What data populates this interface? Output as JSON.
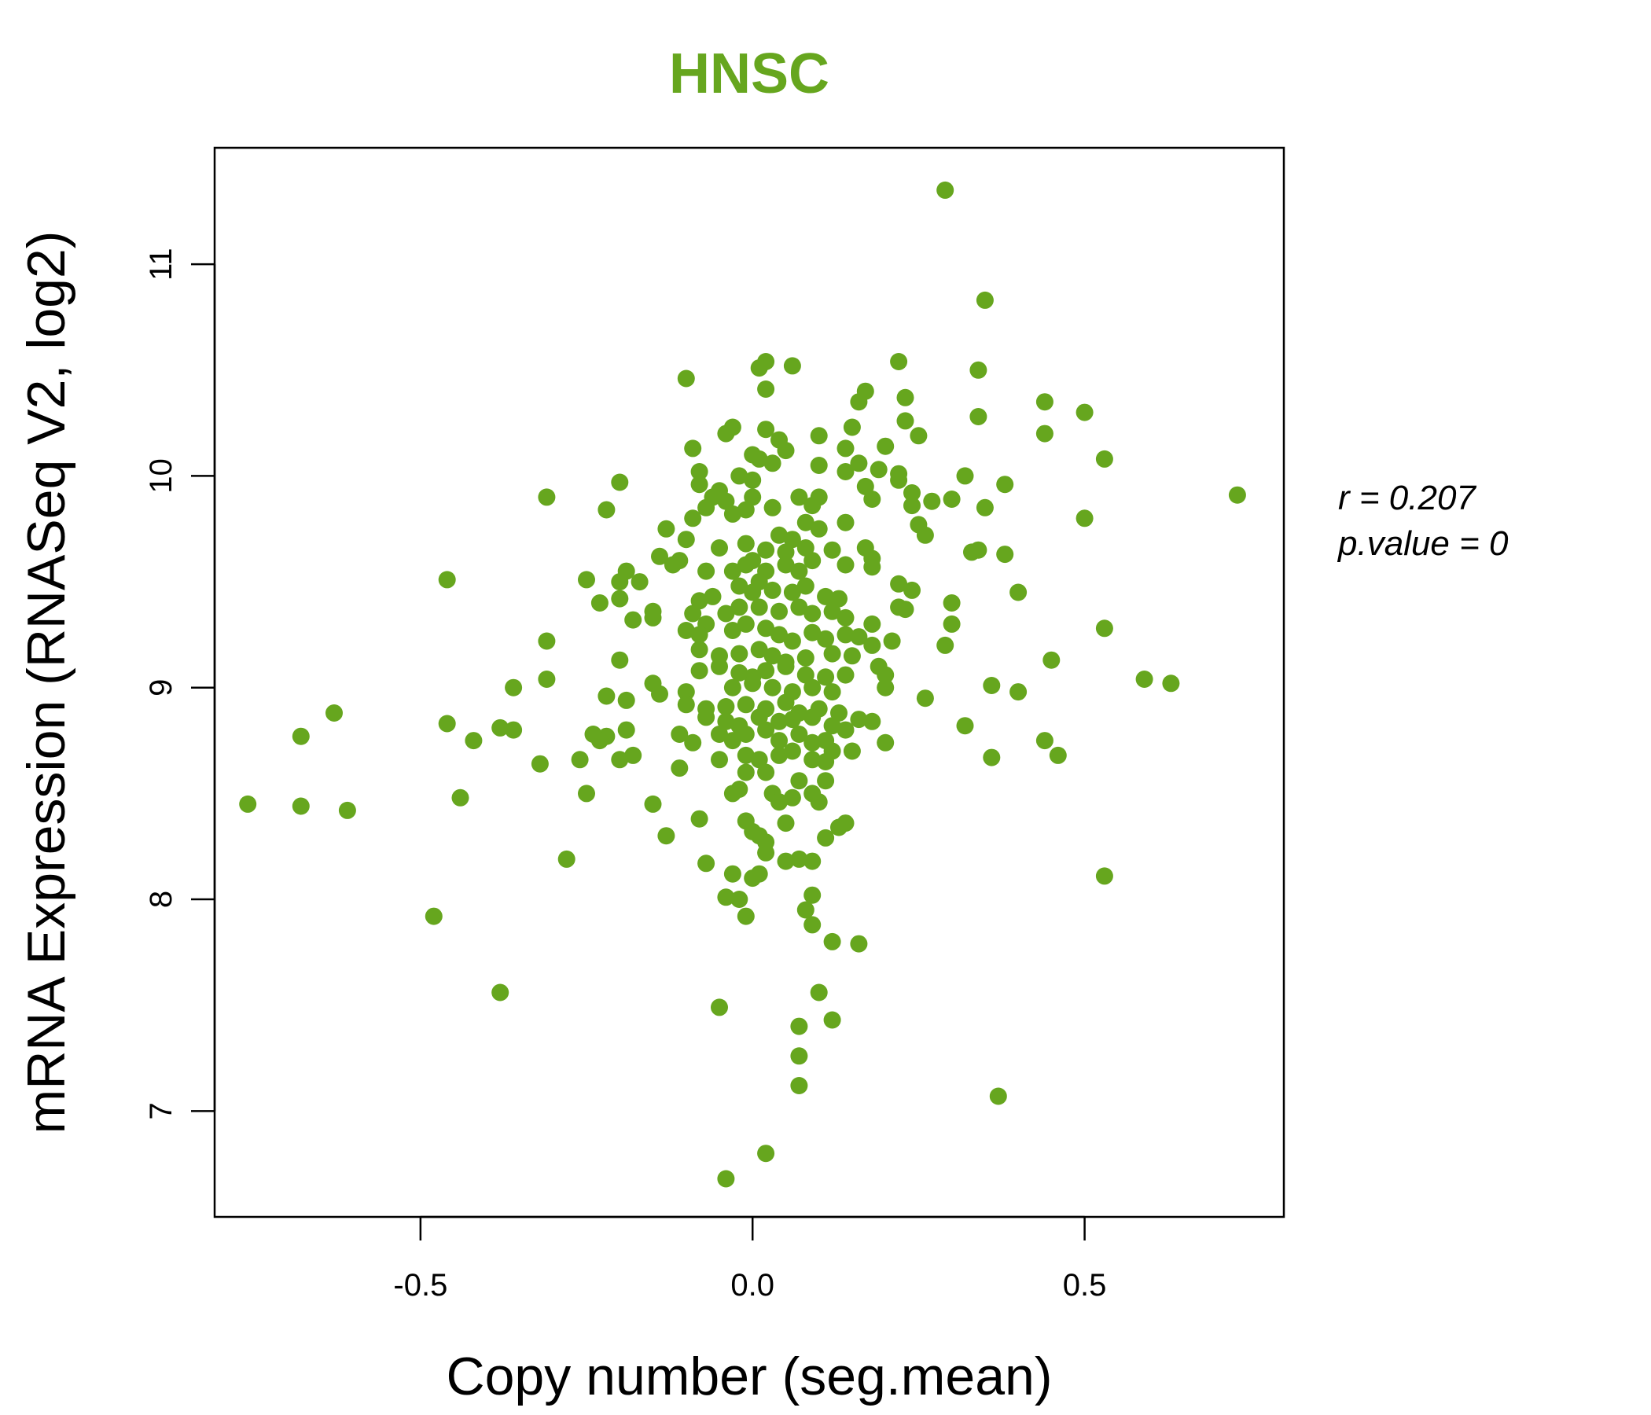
{
  "chart_data": {
    "type": "scatter",
    "title": "HNSC",
    "xlabel": "Copy number (seg.mean)",
    "ylabel": "mRNA Expression (RNASeq V2, log2)",
    "xlim": [
      -0.81,
      0.8
    ],
    "ylim": [
      6.5,
      11.55
    ],
    "x_ticks": [
      -0.5,
      0.0,
      0.5
    ],
    "x_tick_labels": [
      "-0.5",
      "0.0",
      "0.5"
    ],
    "y_ticks": [
      7,
      8,
      9,
      10,
      11
    ],
    "y_tick_labels": [
      "7",
      "8",
      "9",
      "10",
      "11"
    ],
    "grid": false,
    "point_color": "#66a61e",
    "title_color": "#66a61e",
    "stats": {
      "r_label": "r = 0.207",
      "p_label": "p.value = 0"
    },
    "points": [
      [
        0.29,
        11.35
      ],
      [
        0.35,
        10.83
      ],
      [
        0.22,
        10.54
      ],
      [
        0.34,
        10.5
      ],
      [
        0.02,
        10.54
      ],
      [
        0.01,
        10.51
      ],
      [
        0.06,
        10.52
      ],
      [
        0.02,
        10.41
      ],
      [
        -0.1,
        10.46
      ],
      [
        0.17,
        10.4
      ],
      [
        0.16,
        10.35
      ],
      [
        0.23,
        10.37
      ],
      [
        0.44,
        10.35
      ],
      [
        0.5,
        10.3
      ],
      [
        0.34,
        10.28
      ],
      [
        0.23,
        10.26
      ],
      [
        0.44,
        10.2
      ],
      [
        0.25,
        10.19
      ],
      [
        0.15,
        10.23
      ],
      [
        0.1,
        10.19
      ],
      [
        -0.03,
        10.23
      ],
      [
        -0.04,
        10.2
      ],
      [
        0.02,
        10.22
      ],
      [
        0.04,
        10.17
      ],
      [
        0.05,
        10.12
      ],
      [
        -0.09,
        10.13
      ],
      [
        0.14,
        10.13
      ],
      [
        0.2,
        10.14
      ],
      [
        0.01,
        10.08
      ],
      [
        0.0,
        10.1
      ],
      [
        0.03,
        10.06
      ],
      [
        0.1,
        10.05
      ],
      [
        0.16,
        10.06
      ],
      [
        0.53,
        10.08
      ],
      [
        0.14,
        10.02
      ],
      [
        0.19,
        10.03
      ],
      [
        0.22,
        10.01
      ],
      [
        0.32,
        10.0
      ],
      [
        0.38,
        9.96
      ],
      [
        0.22,
        9.98
      ],
      [
        -0.08,
        10.02
      ],
      [
        -0.02,
        10.0
      ],
      [
        0.0,
        9.98
      ],
      [
        -0.2,
        9.97
      ],
      [
        -0.31,
        9.9
      ],
      [
        -0.22,
        9.84
      ],
      [
        -0.08,
        9.96
      ],
      [
        -0.05,
        9.93
      ],
      [
        -0.06,
        9.9
      ],
      [
        -0.04,
        9.88
      ],
      [
        -0.07,
        9.85
      ],
      [
        -0.09,
        9.8
      ],
      [
        -0.03,
        9.82
      ],
      [
        -0.01,
        9.84
      ],
      [
        0.0,
        9.9
      ],
      [
        0.03,
        9.85
      ],
      [
        0.07,
        9.9
      ],
      [
        0.1,
        9.9
      ],
      [
        0.09,
        9.86
      ],
      [
        0.17,
        9.95
      ],
      [
        0.18,
        9.89
      ],
      [
        0.24,
        9.92
      ],
      [
        0.27,
        9.88
      ],
      [
        0.3,
        9.89
      ],
      [
        0.35,
        9.85
      ],
      [
        0.24,
        9.86
      ],
      [
        0.5,
        9.8
      ],
      [
        0.73,
        9.91
      ],
      [
        0.08,
        9.78
      ],
      [
        0.14,
        9.78
      ],
      [
        0.25,
        9.77
      ],
      [
        0.26,
        9.72
      ],
      [
        0.1,
        9.75
      ],
      [
        0.04,
        9.72
      ],
      [
        0.06,
        9.7
      ],
      [
        -0.13,
        9.75
      ],
      [
        -0.1,
        9.7
      ],
      [
        -0.05,
        9.66
      ],
      [
        -0.01,
        9.68
      ],
      [
        0.02,
        9.65
      ],
      [
        0.05,
        9.64
      ],
      [
        0.08,
        9.66
      ],
      [
        0.12,
        9.65
      ],
      [
        0.17,
        9.66
      ],
      [
        0.18,
        9.61
      ],
      [
        0.33,
        9.64
      ],
      [
        0.34,
        9.65
      ],
      [
        0.38,
        9.63
      ],
      [
        -0.14,
        9.62
      ],
      [
        -0.11,
        9.6
      ],
      [
        -0.12,
        9.58
      ],
      [
        -0.19,
        9.55
      ],
      [
        -0.17,
        9.5
      ],
      [
        -0.2,
        9.5
      ],
      [
        -0.25,
        9.51
      ],
      [
        -0.46,
        9.51
      ],
      [
        -0.07,
        9.55
      ],
      [
        -0.03,
        9.55
      ],
      [
        -0.01,
        9.58
      ],
      [
        0.0,
        9.6
      ],
      [
        0.02,
        9.55
      ],
      [
        0.05,
        9.58
      ],
      [
        0.07,
        9.55
      ],
      [
        0.09,
        9.6
      ],
      [
        0.14,
        9.58
      ],
      [
        0.18,
        9.57
      ],
      [
        0.22,
        9.49
      ],
      [
        0.24,
        9.46
      ],
      [
        0.4,
        9.45
      ],
      [
        -0.02,
        9.48
      ],
      [
        0.0,
        9.45
      ],
      [
        0.01,
        9.5
      ],
      [
        0.03,
        9.46
      ],
      [
        0.06,
        9.45
      ],
      [
        0.08,
        9.48
      ],
      [
        0.11,
        9.43
      ],
      [
        0.13,
        9.42
      ],
      [
        -0.08,
        9.41
      ],
      [
        -0.06,
        9.43
      ],
      [
        -0.2,
        9.42
      ],
      [
        -0.23,
        9.4
      ],
      [
        -0.15,
        9.36
      ],
      [
        -0.18,
        9.32
      ],
      [
        -0.15,
        9.33
      ],
      [
        -0.09,
        9.35
      ],
      [
        -0.07,
        9.3
      ],
      [
        -0.04,
        9.35
      ],
      [
        -0.02,
        9.38
      ],
      [
        0.01,
        9.38
      ],
      [
        0.04,
        9.36
      ],
      [
        0.07,
        9.38
      ],
      [
        0.09,
        9.35
      ],
      [
        0.12,
        9.36
      ],
      [
        0.14,
        9.33
      ],
      [
        0.18,
        9.3
      ],
      [
        0.22,
        9.38
      ],
      [
        0.23,
        9.37
      ],
      [
        0.3,
        9.4
      ],
      [
        0.3,
        9.3
      ],
      [
        -0.1,
        9.27
      ],
      [
        -0.08,
        9.25
      ],
      [
        -0.03,
        9.27
      ],
      [
        -0.01,
        9.3
      ],
      [
        0.02,
        9.28
      ],
      [
        0.04,
        9.25
      ],
      [
        0.06,
        9.22
      ],
      [
        0.09,
        9.26
      ],
      [
        0.11,
        9.23
      ],
      [
        0.14,
        9.25
      ],
      [
        0.16,
        9.24
      ],
      [
        0.18,
        9.2
      ],
      [
        0.21,
        9.22
      ],
      [
        0.29,
        9.2
      ],
      [
        0.53,
        9.28
      ],
      [
        -0.31,
        9.22
      ],
      [
        -0.08,
        9.18
      ],
      [
        -0.05,
        9.15
      ],
      [
        -0.02,
        9.16
      ],
      [
        0.01,
        9.18
      ],
      [
        0.03,
        9.15
      ],
      [
        0.05,
        9.12
      ],
      [
        0.08,
        9.14
      ],
      [
        0.12,
        9.16
      ],
      [
        0.15,
        9.15
      ],
      [
        0.19,
        9.1
      ],
      [
        0.45,
        9.13
      ],
      [
        -0.2,
        9.13
      ],
      [
        -0.08,
        9.08
      ],
      [
        -0.05,
        9.1
      ],
      [
        -0.02,
        9.07
      ],
      [
        0.0,
        9.05
      ],
      [
        0.02,
        9.08
      ],
      [
        0.05,
        9.1
      ],
      [
        0.08,
        9.06
      ],
      [
        0.11,
        9.05
      ],
      [
        0.14,
        9.06
      ],
      [
        0.2,
        9.06
      ],
      [
        0.59,
        9.04
      ],
      [
        0.63,
        9.02
      ],
      [
        -0.31,
        9.04
      ],
      [
        -0.36,
        9.0
      ],
      [
        -0.15,
        9.02
      ],
      [
        -0.1,
        8.98
      ],
      [
        -0.03,
        9.0
      ],
      [
        0.0,
        9.02
      ],
      [
        0.03,
        9.0
      ],
      [
        0.06,
        8.98
      ],
      [
        0.09,
        9.0
      ],
      [
        0.12,
        8.98
      ],
      [
        0.2,
        9.0
      ],
      [
        0.36,
        9.01
      ],
      [
        0.4,
        8.98
      ],
      [
        -0.14,
        8.97
      ],
      [
        -0.19,
        8.94
      ],
      [
        -0.22,
        8.96
      ],
      [
        -0.1,
        8.92
      ],
      [
        -0.07,
        8.9
      ],
      [
        -0.04,
        8.91
      ],
      [
        -0.01,
        8.92
      ],
      [
        0.02,
        8.9
      ],
      [
        0.05,
        8.93
      ],
      [
        0.07,
        8.88
      ],
      [
        0.1,
        8.9
      ],
      [
        0.13,
        8.88
      ],
      [
        0.16,
        8.85
      ],
      [
        0.26,
        8.95
      ],
      [
        -0.07,
        8.86
      ],
      [
        -0.04,
        8.84
      ],
      [
        -0.02,
        8.82
      ],
      [
        0.01,
        8.86
      ],
      [
        0.04,
        8.84
      ],
      [
        0.06,
        8.85
      ],
      [
        0.09,
        8.86
      ],
      [
        0.12,
        8.82
      ],
      [
        0.14,
        8.8
      ],
      [
        0.18,
        8.84
      ],
      [
        -0.63,
        8.88
      ],
      [
        -0.46,
        8.83
      ],
      [
        -0.38,
        8.81
      ],
      [
        -0.36,
        8.8
      ],
      [
        -0.19,
        8.8
      ],
      [
        -0.22,
        8.77
      ],
      [
        -0.23,
        8.75
      ],
      [
        -0.24,
        8.78
      ],
      [
        -0.11,
        8.78
      ],
      [
        -0.09,
        8.74
      ],
      [
        -0.05,
        8.78
      ],
      [
        -0.03,
        8.75
      ],
      [
        -0.01,
        8.78
      ],
      [
        0.02,
        8.8
      ],
      [
        0.04,
        8.75
      ],
      [
        0.07,
        8.78
      ],
      [
        0.09,
        8.74
      ],
      [
        0.11,
        8.75
      ],
      [
        0.2,
        8.74
      ],
      [
        0.32,
        8.82
      ],
      [
        0.44,
        8.75
      ],
      [
        -0.68,
        8.77
      ],
      [
        -0.42,
        8.75
      ],
      [
        -0.26,
        8.66
      ],
      [
        -0.2,
        8.66
      ],
      [
        -0.18,
        8.68
      ],
      [
        -0.32,
        8.64
      ],
      [
        -0.11,
        8.62
      ],
      [
        -0.05,
        8.66
      ],
      [
        -0.01,
        8.68
      ],
      [
        0.01,
        8.66
      ],
      [
        0.04,
        8.68
      ],
      [
        0.06,
        8.7
      ],
      [
        0.09,
        8.66
      ],
      [
        0.11,
        8.65
      ],
      [
        0.12,
        8.7
      ],
      [
        0.15,
        8.7
      ],
      [
        0.36,
        8.67
      ],
      [
        0.46,
        8.68
      ],
      [
        -0.01,
        8.6
      ],
      [
        0.02,
        8.6
      ],
      [
        0.07,
        8.56
      ],
      [
        0.11,
        8.56
      ],
      [
        -0.02,
        8.52
      ],
      [
        -0.03,
        8.5
      ],
      [
        0.03,
        8.5
      ],
      [
        0.06,
        8.48
      ],
      [
        0.04,
        8.46
      ],
      [
        0.09,
        8.5
      ],
      [
        0.1,
        8.46
      ],
      [
        -0.25,
        8.5
      ],
      [
        -0.44,
        8.48
      ],
      [
        -0.15,
        8.45
      ],
      [
        -0.76,
        8.45
      ],
      [
        -0.68,
        8.44
      ],
      [
        -0.61,
        8.42
      ],
      [
        -0.08,
        8.38
      ],
      [
        -0.01,
        8.37
      ],
      [
        0.0,
        8.32
      ],
      [
        0.01,
        8.3
      ],
      [
        0.02,
        8.27
      ],
      [
        0.05,
        8.36
      ],
      [
        0.13,
        8.34
      ],
      [
        0.14,
        8.36
      ],
      [
        0.11,
        8.29
      ],
      [
        -0.13,
        8.3
      ],
      [
        -0.28,
        8.19
      ],
      [
        0.05,
        8.18
      ],
      [
        0.07,
        8.19
      ],
      [
        0.09,
        8.18
      ],
      [
        -0.07,
        8.17
      ],
      [
        0.53,
        8.11
      ],
      [
        -0.03,
        8.12
      ],
      [
        0.0,
        8.1
      ],
      [
        0.01,
        8.12
      ],
      [
        0.02,
        8.22
      ],
      [
        0.09,
        8.02
      ],
      [
        -0.04,
        8.01
      ],
      [
        -0.02,
        8.0
      ],
      [
        0.08,
        7.95
      ],
      [
        -0.48,
        7.92
      ],
      [
        -0.01,
        7.92
      ],
      [
        0.09,
        7.88
      ],
      [
        0.12,
        7.8
      ],
      [
        0.16,
        7.79
      ],
      [
        -0.38,
        7.56
      ],
      [
        -0.05,
        7.49
      ],
      [
        0.1,
        7.56
      ],
      [
        0.12,
        7.43
      ],
      [
        0.07,
        7.4
      ],
      [
        0.07,
        7.26
      ],
      [
        0.07,
        7.12
      ],
      [
        0.37,
        7.07
      ],
      [
        0.02,
        6.8
      ],
      [
        -0.04,
        6.68
      ]
    ]
  }
}
